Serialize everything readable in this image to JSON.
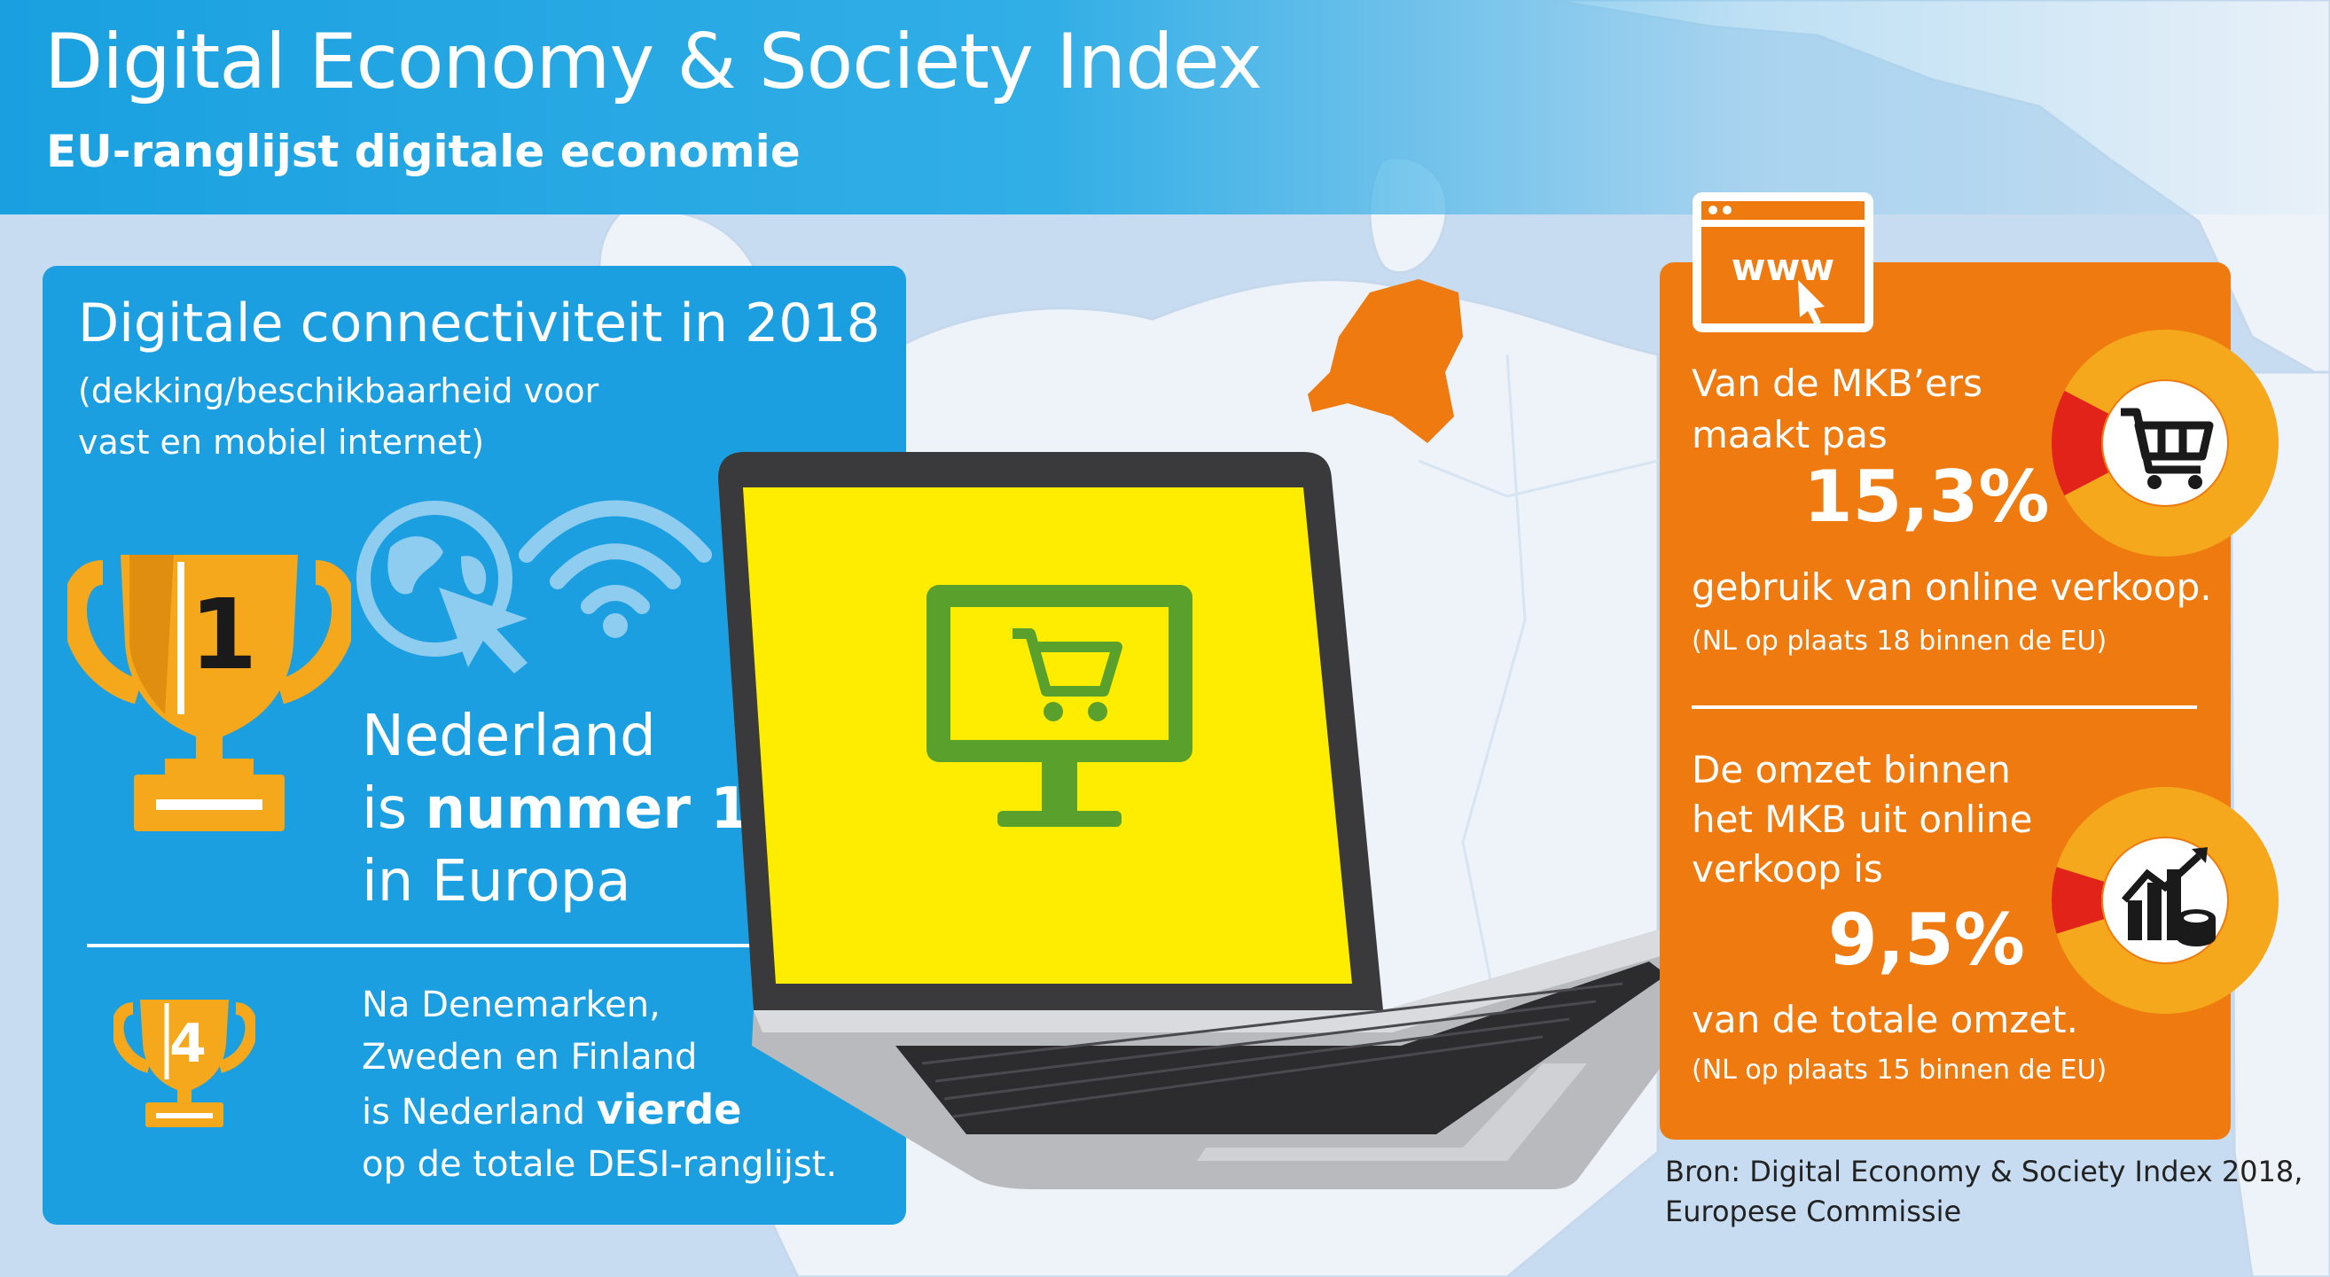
{
  "header": {
    "title": "Digital Economy & Society Index",
    "subtitle": "EU-ranglijst digitale economie"
  },
  "left_panel": {
    "heading": "Digitale connectiviteit in 2018",
    "subheading_lines": [
      "(dekking/beschikbaarheid voor",
      "vast en mobiel internet)"
    ],
    "trophy_rank_main": "1",
    "trophy_rank_secondary": "4",
    "rank1_line1": "Nederland",
    "rank1_line2_pre": "is ",
    "rank1_line2_bold": "nummer 1",
    "rank1_line3": "in Europa",
    "rank4_line1": "Na Denemarken,",
    "rank4_line2": "Zweden en Finland",
    "rank4_line3_pre": "is Nederland ",
    "rank4_line3_bold": "vierde",
    "rank4_line4": "op de totale DESI-ranglijst."
  },
  "laptop": {
    "icons": [
      "globe-cursor-icon",
      "wifi-icon",
      "monitor-cart-icon"
    ]
  },
  "right_panel": {
    "browser_icon_text": "www",
    "stat1": {
      "line1": "Van de MKB’ers",
      "line2": "maakt pas",
      "value": "15,3%",
      "line3": "gebruik van online verkoop.",
      "note": "(NL op plaats 18 binnen de EU)",
      "fraction": 0.153
    },
    "stat2": {
      "line1": "De omzet binnen",
      "line2": "het MKB uit online",
      "line3": "verkoop is",
      "value": "9,5%",
      "line4": "van de totale omzet.",
      "note": "(NL op plaats 15 binnen de EU)",
      "fraction": 0.095
    }
  },
  "source": {
    "line1": "Bron: Digital Economy & Society Index 2018,",
    "line2": "Europese Commissie"
  },
  "colors": {
    "blue": "#1c9fe0",
    "orange": "#ee7a10",
    "gold": "#f5a81c",
    "red": "#e2231a",
    "green": "#5aa02c",
    "yellow": "#ffed00"
  }
}
